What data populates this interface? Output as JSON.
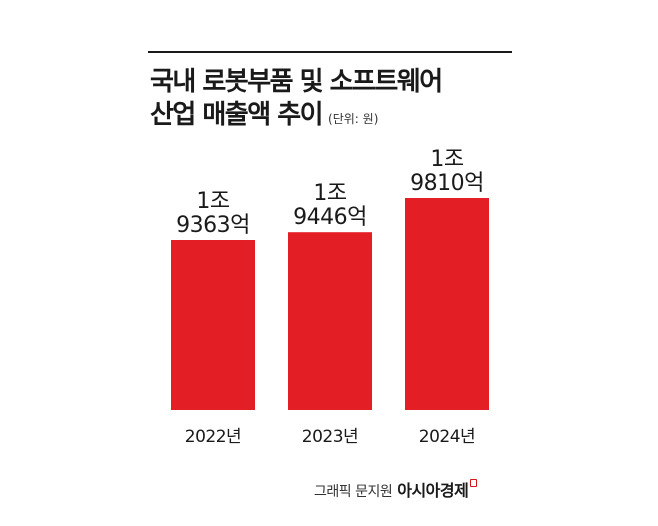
{
  "title": {
    "line1": "국내 로봇부품 및 소프트웨어",
    "line2": "산업 매출액 추이",
    "unit": "(단위: 원)"
  },
  "colors": {
    "bar": "#e31e24",
    "text": "#1a1a1a",
    "accent": "#d6141c"
  },
  "chart_data": {
    "type": "bar",
    "title": "국내 로봇부품 및 소프트웨어 산업 매출액 추이",
    "unit": "원",
    "categories": [
      "2022년",
      "2023년",
      "2024년"
    ],
    "values": [
      19363,
      19446,
      19810
    ],
    "value_unit": "억",
    "data_labels": [
      [
        "1조",
        "9363억"
      ],
      [
        "1조",
        "9446억"
      ],
      [
        "1조",
        "9810억"
      ]
    ]
  },
  "credit": {
    "text": "그래픽 문지원",
    "brand": "아시아경제"
  }
}
